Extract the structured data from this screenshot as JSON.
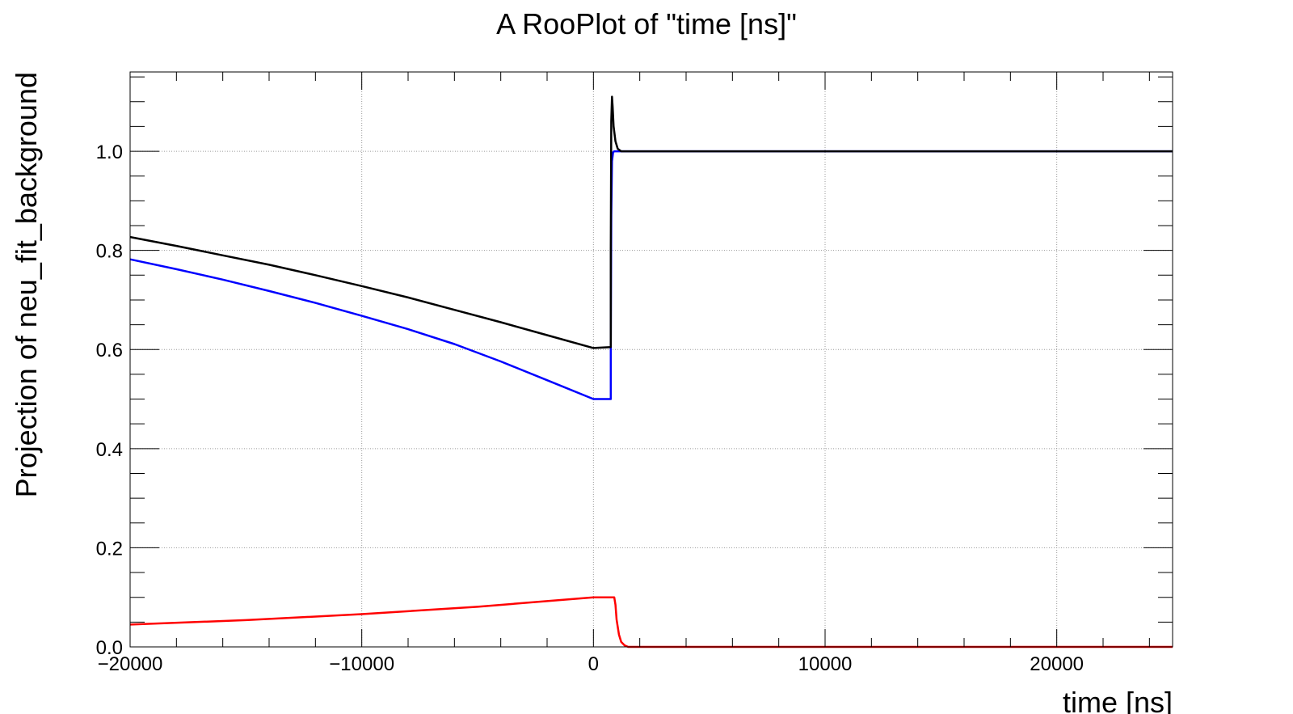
{
  "chart_data": {
    "type": "line",
    "title": "A RooPlot of \"time [ns]\"",
    "xlabel": "time [ns]",
    "ylabel": "Projection of neu_fit_background",
    "xlim": [
      -20000,
      25000
    ],
    "ylim": [
      0,
      1.16
    ],
    "x_ticks": [
      {
        "value": -20000,
        "label": "−20000"
      },
      {
        "value": -10000,
        "label": "−10000"
      },
      {
        "value": 0,
        "label": "0"
      },
      {
        "value": 10000,
        "label": "10000"
      },
      {
        "value": 20000,
        "label": "20000"
      }
    ],
    "y_ticks": [
      {
        "value": 0.0,
        "label": "0.0"
      },
      {
        "value": 0.2,
        "label": "0.2"
      },
      {
        "value": 0.4,
        "label": "0.4"
      },
      {
        "value": 0.6,
        "label": "0.6"
      },
      {
        "value": 0.8,
        "label": "0.8"
      },
      {
        "value": 1.0,
        "label": "1.0"
      }
    ],
    "grid": true,
    "legend": "none",
    "series": [
      {
        "color": "#0000ff",
        "x": [
          -20000,
          -18000,
          -16000,
          -14000,
          -12000,
          -10000,
          -8000,
          -6000,
          -4000,
          -2000,
          0,
          750,
          750,
          770,
          800,
          850,
          900,
          1000,
          25000
        ],
        "y": [
          0.782,
          0.762,
          0.741,
          0.718,
          0.694,
          0.668,
          0.641,
          0.611,
          0.576,
          0.538,
          0.5,
          0.5,
          0.605,
          0.87,
          0.98,
          0.998,
          1.0,
          1.0,
          1.0
        ]
      },
      {
        "color": "#ff0000",
        "x": [
          -20000,
          -15000,
          -10000,
          -5000,
          0,
          900,
          950,
          1000,
          1100,
          1200,
          1350,
          1500,
          25000
        ],
        "y": [
          0.045,
          0.054,
          0.066,
          0.081,
          0.1,
          0.1,
          0.085,
          0.055,
          0.025,
          0.01,
          0.003,
          0.0,
          0.0
        ]
      },
      {
        "color": "#000000",
        "x": [
          -20000,
          -18000,
          -16000,
          -14000,
          -12000,
          -10000,
          -8000,
          -6000,
          -4000,
          -2000,
          0,
          750,
          750,
          770,
          800,
          830,
          870,
          950,
          1050,
          1200,
          1400,
          25000
        ],
        "y": [
          0.827,
          0.809,
          0.79,
          0.771,
          0.75,
          0.728,
          0.705,
          0.68,
          0.655,
          0.629,
          0.603,
          0.605,
          0.8,
          1.06,
          1.11,
          1.09,
          1.05,
          1.02,
          1.005,
          1.0,
          1.0,
          1.0
        ]
      }
    ]
  }
}
